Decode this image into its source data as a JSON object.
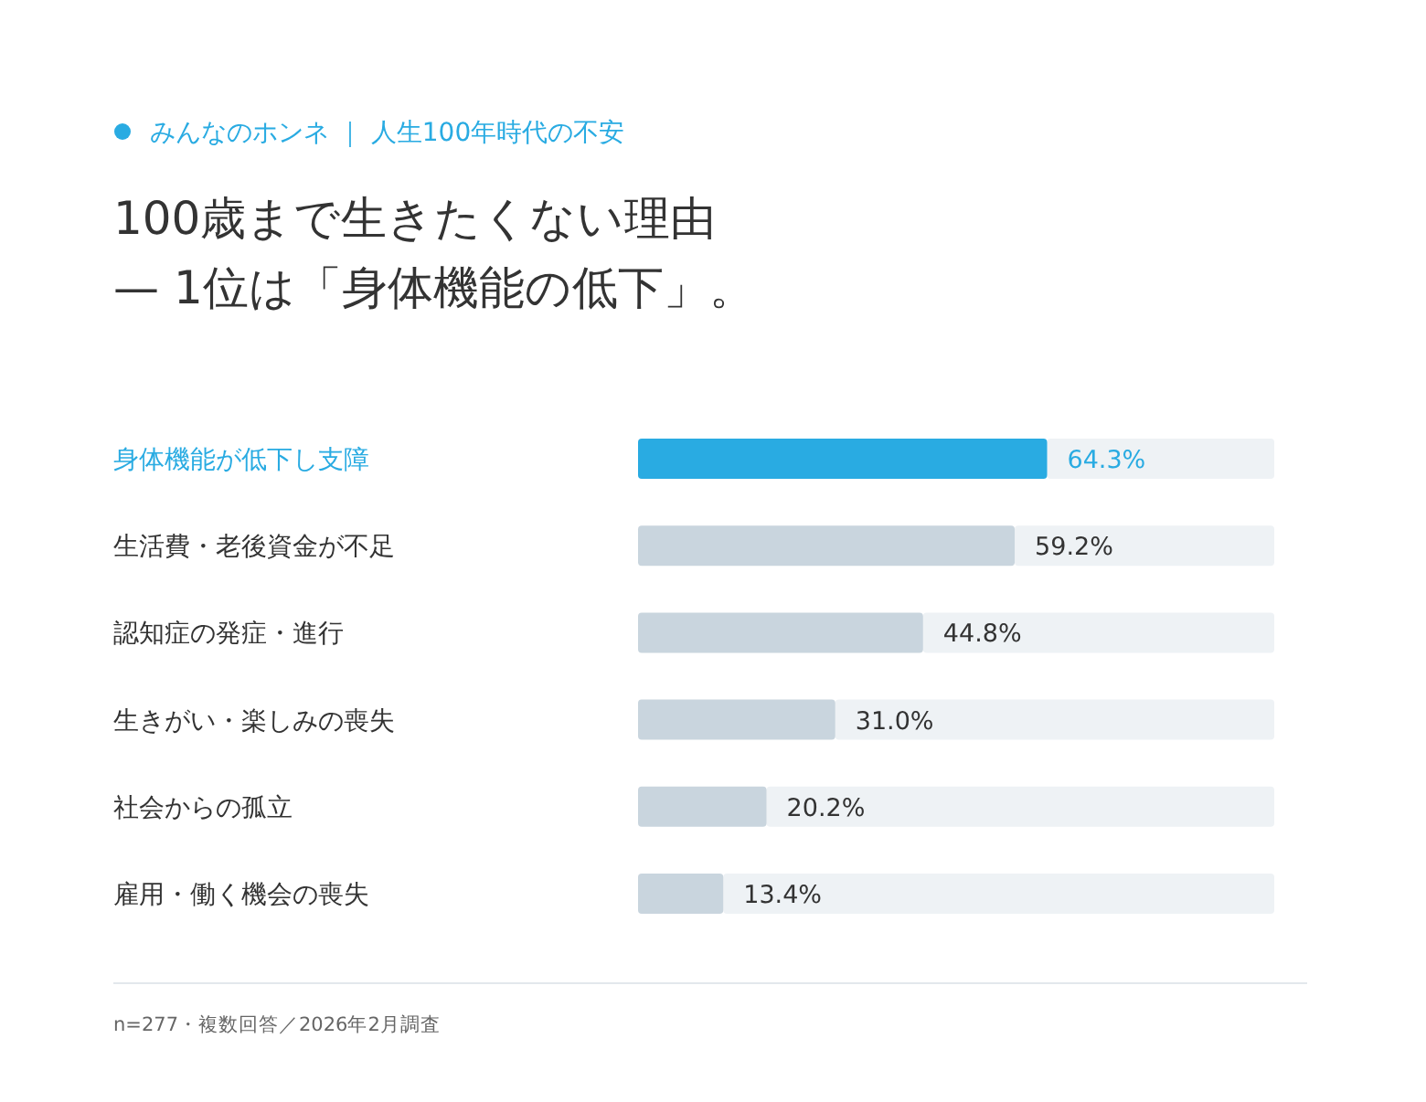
{
  "chart_data": {
    "type": "bar",
    "orientation": "horizontal",
    "subtitle": "みんなのホンネ ｜ 人生100年時代の不安",
    "title": "100歳まで生きたくない理由\n— 1位は「身体機能の低下」。",
    "categories": [
      "身体機能が低下し支障",
      "生活費・老後資金が不足",
      "認知症の発症・進行",
      "生きがい・楽しみの喪失",
      "社会からの孤立",
      "雇用・働く機会の喪失"
    ],
    "values": [
      64.3,
      59.2,
      44.8,
      31.0,
      20.2,
      13.4
    ],
    "colors": [
      "#29abe2",
      "#c9d5de",
      "#c9d5de",
      "#c9d5de",
      "#c9d5de",
      "#c9d5de"
    ],
    "value_labels": [
      "64.3%",
      "59.2%",
      "44.8%",
      "31.0%",
      "20.2%",
      "13.4%"
    ],
    "xlim": [
      0,
      100
    ],
    "tick_labels": "y",
    "annotations": [
      "n=277・複数回答／2026年2月調査"
    ]
  }
}
